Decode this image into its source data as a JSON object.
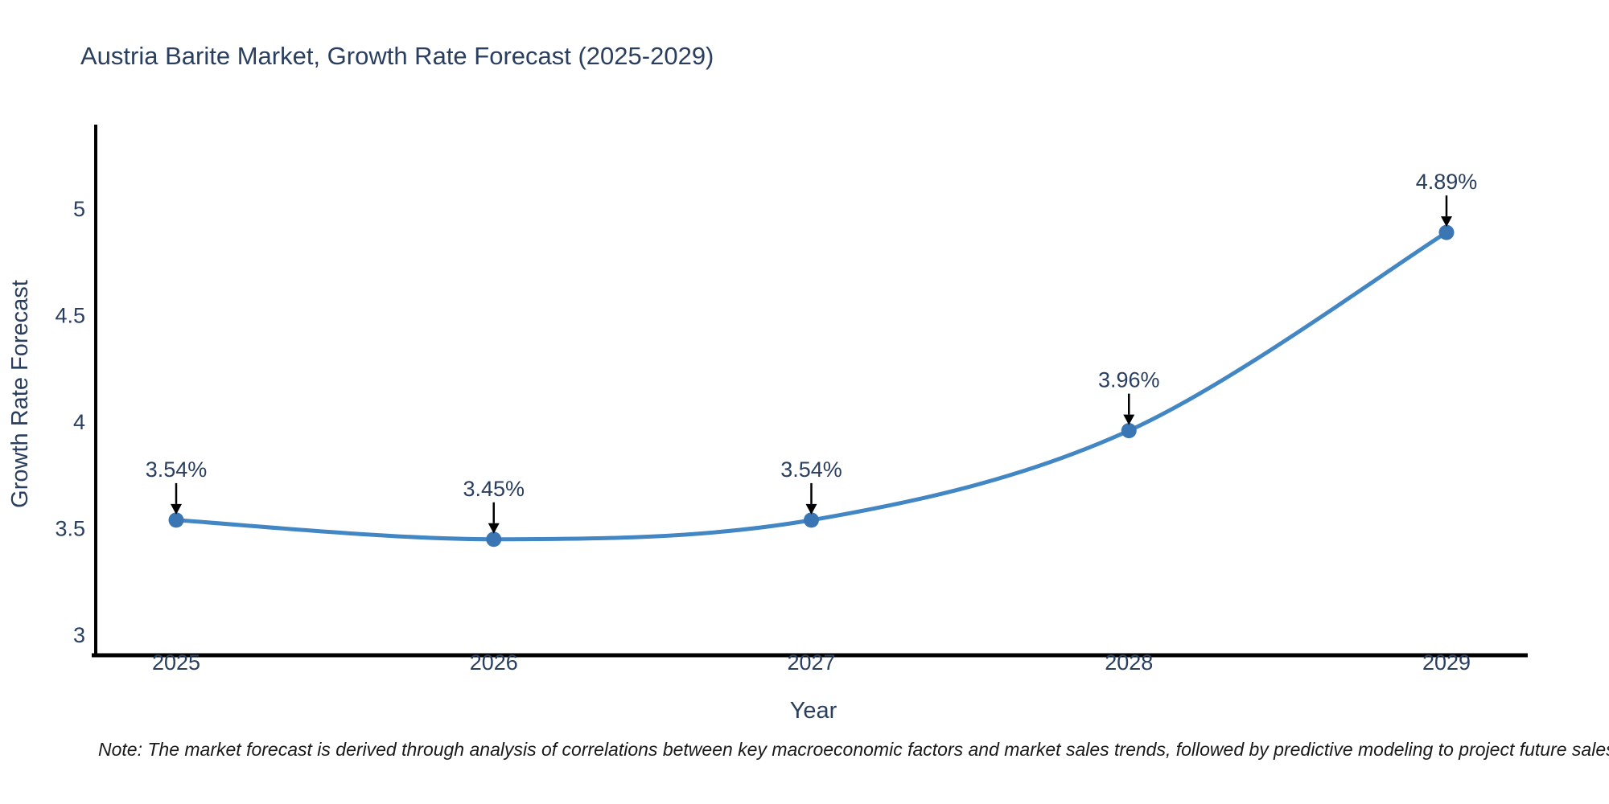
{
  "page": {
    "note": "Note: The market forecast is derived through analysis of correlations between key macroeconomic factors and market sales trends, followed by predictive modeling to project future sales"
  },
  "chart_data": {
    "type": "line",
    "title": "Austria Barite Market, Growth Rate Forecast (2025-2029)",
    "xlabel": "Year",
    "ylabel": "Growth Rate Forecast",
    "categories": [
      "2025",
      "2026",
      "2027",
      "2028",
      "2029"
    ],
    "values": [
      3.54,
      3.45,
      3.54,
      3.96,
      4.89
    ],
    "point_labels": [
      "3.54%",
      "3.45%",
      "3.54%",
      "3.96%",
      "4.89%"
    ],
    "yticks": [
      3,
      3.5,
      4,
      4.5,
      5
    ],
    "ytick_labels": [
      "3",
      "3.5",
      "4",
      "4.5",
      "5"
    ],
    "ylim": [
      2.9,
      5.4
    ],
    "grid": false,
    "legend": "none",
    "curve": "spline",
    "annotation_style": "value label above point with downward black arrow",
    "colors": {
      "line": "#4286c4",
      "marker": "#3a76b4",
      "arrow": "#000000",
      "text": "#2a3f5f",
      "axis": "#000000",
      "background": "#ffffff"
    }
  }
}
